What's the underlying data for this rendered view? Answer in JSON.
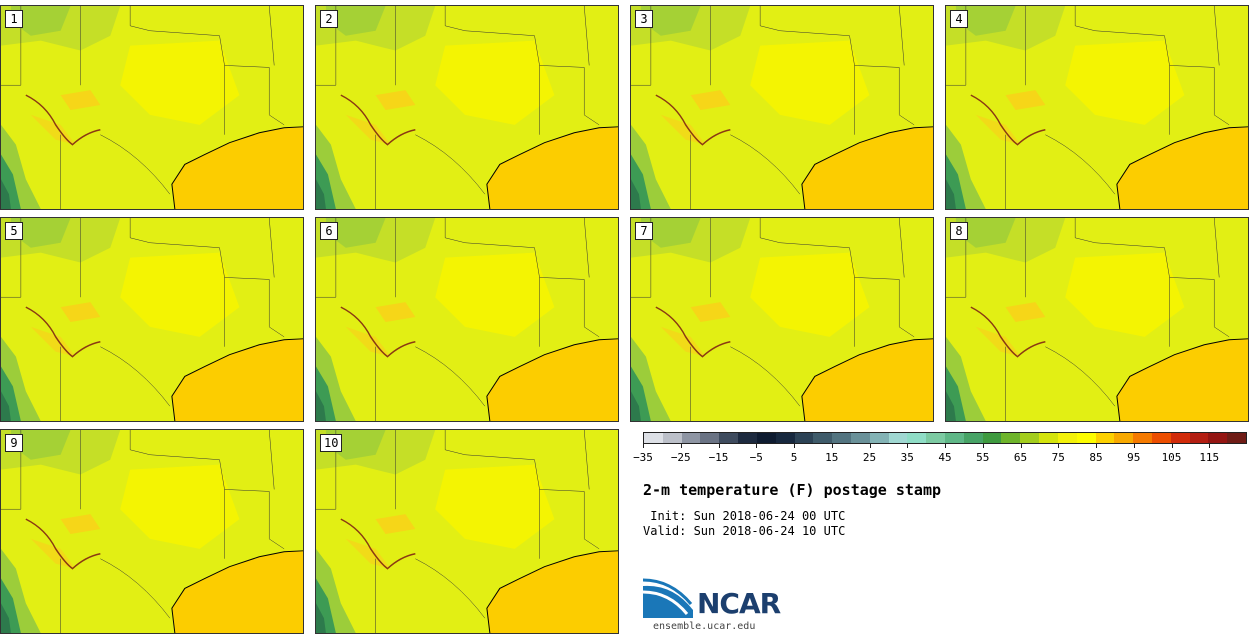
{
  "members": [
    "1",
    "2",
    "3",
    "4",
    "5",
    "6",
    "7",
    "8",
    "9",
    "10"
  ],
  "colorbar": {
    "colors": [
      "#dde0e6",
      "#bcc0c9",
      "#8e95a3",
      "#6a7384",
      "#3e4b5e",
      "#1d2a3f",
      "#0e1b30",
      "#17283e",
      "#2c4255",
      "#3f5b6a",
      "#537480",
      "#6a9199",
      "#83b3b5",
      "#a0d8d2",
      "#8fddc6",
      "#7ccaa2",
      "#5fb787",
      "#47a366",
      "#3e9a3f",
      "#6eb42b",
      "#a3cd1d",
      "#d4e40d",
      "#f3f10a",
      "#fcfc00",
      "#fcd000",
      "#f8a900",
      "#f57a00",
      "#ec4e00",
      "#d12b0a",
      "#b31e12",
      "#941512",
      "#6f1c16"
    ],
    "tick_labels": [
      "−35",
      "−25",
      "−15",
      "−5",
      "5",
      "15",
      "25",
      "35",
      "45",
      "55",
      "65",
      "75",
      "85",
      "95",
      "105",
      "115"
    ]
  },
  "title": "2-m temperature (F) postage stamp",
  "init": " Init: Sun 2018-06-24 00 UTC",
  "valid": "Valid: Sun 2018-06-24 10 UTC",
  "logo_text": "NCAR",
  "url": "ensemble.ucar.edu"
}
